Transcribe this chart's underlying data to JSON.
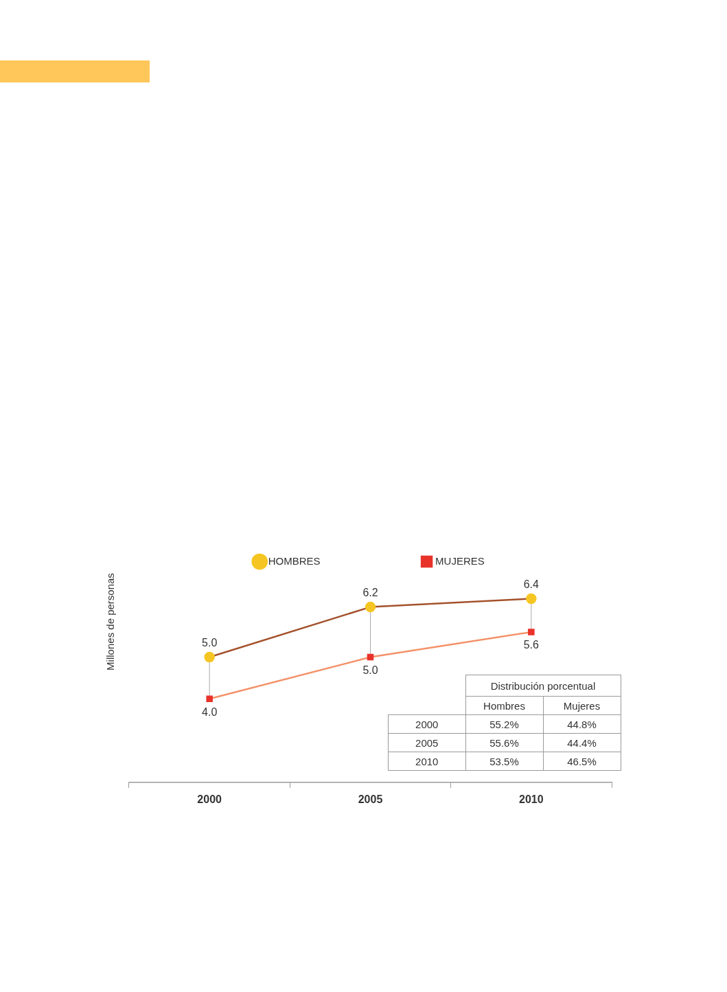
{
  "chart_data": {
    "type": "line",
    "ylabel": "Millones de personas",
    "categories": [
      "2000",
      "2005",
      "2010"
    ],
    "series": [
      {
        "name": "HOMBRES",
        "color": "#a4522c",
        "colors": [
          "#f5c623",
          "#f5c623",
          "#f5c623"
        ],
        "marker": "circle",
        "values": [
          5.0,
          6.2,
          6.4
        ],
        "value_labels": [
          "5.0",
          "6.2",
          "6.4"
        ]
      },
      {
        "name": "MUJERES",
        "color": "#f4926a",
        "colors": [
          "#e8322a",
          "#e8322a",
          "#e8322a"
        ],
        "marker": "square",
        "values": [
          4.0,
          5.0,
          5.6
        ],
        "value_labels": [
          "4.0",
          "5.0",
          "5.6"
        ]
      }
    ],
    "legend": "top",
    "grid": false,
    "tick_labels": "x",
    "annotations": [
      "Distribución porcentual",
      "Hombres",
      "Mujeres",
      "2000",
      "55.2%",
      "44.8%",
      "2005",
      "55.6%",
      "44.4%",
      "2010",
      "53.5%",
      "46.5%"
    ]
  }
}
